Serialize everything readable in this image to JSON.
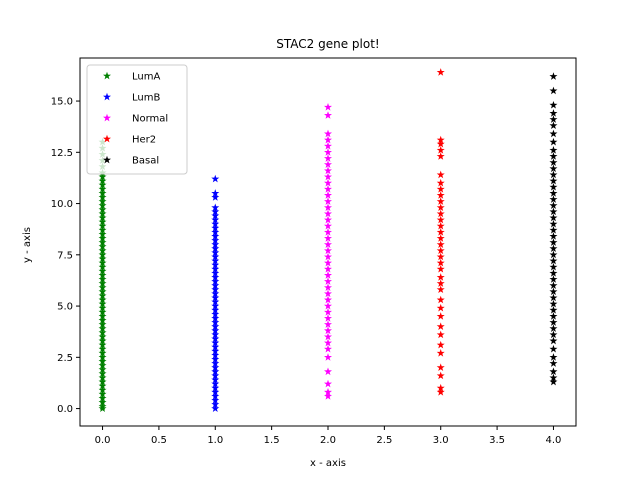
{
  "chart_data": {
    "type": "scatter",
    "title": "STAC2 gene plot!",
    "xlabel": "x - axis",
    "ylabel": "y - axis",
    "xlim": [
      -0.2,
      4.2
    ],
    "ylim": [
      -0.85,
      17.1
    ],
    "xticks": [
      "0.0",
      "0.5",
      "1.0",
      "1.5",
      "2.0",
      "2.5",
      "3.0",
      "3.5",
      "4.0"
    ],
    "yticks": [
      "0.0",
      "2.5",
      "5.0",
      "7.5",
      "10.0",
      "12.5",
      "15.0"
    ],
    "marker": "star",
    "grid": false,
    "legend_position": "upper-left",
    "series": [
      {
        "name": "LumA",
        "color": "#008000",
        "x": 0,
        "y": [
          0.0,
          0.1,
          0.3,
          0.5,
          0.7,
          0.9,
          1.1,
          1.3,
          1.5,
          1.7,
          1.9,
          2.1,
          2.3,
          2.5,
          2.7,
          2.9,
          3.1,
          3.3,
          3.5,
          3.7,
          3.9,
          4.1,
          4.3,
          4.5,
          4.7,
          4.9,
          5.1,
          5.3,
          5.5,
          5.7,
          5.9,
          6.1,
          6.3,
          6.5,
          6.7,
          6.9,
          7.1,
          7.3,
          7.5,
          7.7,
          7.9,
          8.1,
          8.3,
          8.5,
          8.7,
          8.9,
          9.1,
          9.3,
          9.5,
          9.7,
          9.9,
          10.1,
          10.3,
          10.5,
          10.7,
          10.9,
          11.1,
          11.3,
          11.5,
          11.8,
          12.1,
          12.4,
          12.7,
          13.0
        ]
      },
      {
        "name": "LumB",
        "color": "#0000ff",
        "x": 1,
        "y": [
          0.0,
          0.2,
          0.4,
          0.6,
          0.8,
          1.0,
          1.2,
          1.4,
          1.6,
          1.8,
          2.0,
          2.2,
          2.4,
          2.6,
          2.8,
          3.0,
          3.2,
          3.4,
          3.6,
          3.8,
          4.0,
          4.2,
          4.4,
          4.6,
          4.8,
          5.0,
          5.2,
          5.4,
          5.6,
          5.8,
          6.0,
          6.2,
          6.4,
          6.6,
          6.8,
          7.0,
          7.2,
          7.4,
          7.6,
          7.8,
          8.0,
          8.2,
          8.4,
          8.6,
          8.8,
          9.0,
          9.2,
          9.4,
          9.6,
          9.8,
          10.3,
          10.5,
          11.2
        ]
      },
      {
        "name": "Normal",
        "color": "#ff00ff",
        "x": 2,
        "y": [
          0.6,
          0.8,
          1.2,
          1.8,
          2.5,
          2.9,
          3.2,
          3.5,
          3.8,
          4.1,
          4.4,
          4.7,
          5.0,
          5.3,
          5.6,
          5.9,
          6.2,
          6.5,
          6.8,
          7.1,
          7.4,
          7.7,
          8.0,
          8.3,
          8.6,
          8.9,
          9.2,
          9.5,
          9.8,
          10.1,
          10.4,
          10.7,
          11.0,
          11.3,
          11.6,
          11.9,
          12.2,
          12.5,
          12.8,
          13.1,
          13.4,
          14.3,
          14.7
        ]
      },
      {
        "name": "Her2",
        "color": "#ff0000",
        "x": 3,
        "y": [
          0.8,
          1.0,
          1.6,
          2.0,
          2.7,
          3.1,
          3.6,
          4.0,
          4.5,
          4.9,
          5.3,
          5.8,
          6.1,
          6.4,
          6.8,
          7.1,
          7.4,
          7.7,
          8.0,
          8.3,
          8.6,
          8.9,
          9.2,
          9.5,
          9.8,
          10.1,
          10.4,
          10.7,
          11.0,
          11.4,
          12.3,
          12.6,
          12.9,
          13.1,
          16.4
        ]
      },
      {
        "name": "Basal",
        "color": "#000000",
        "x": 4,
        "y": [
          1.3,
          1.5,
          1.8,
          2.2,
          2.5,
          2.9,
          3.3,
          3.6,
          3.9,
          4.2,
          4.5,
          4.8,
          5.1,
          5.4,
          5.7,
          6.0,
          6.3,
          6.6,
          6.9,
          7.2,
          7.5,
          7.8,
          8.1,
          8.4,
          8.7,
          9.0,
          9.3,
          9.6,
          9.9,
          10.2,
          10.5,
          10.8,
          11.1,
          11.4,
          11.7,
          12.0,
          12.3,
          12.6,
          13.0,
          13.4,
          13.8,
          14.1,
          14.4,
          14.8,
          15.5,
          16.2
        ]
      }
    ]
  }
}
